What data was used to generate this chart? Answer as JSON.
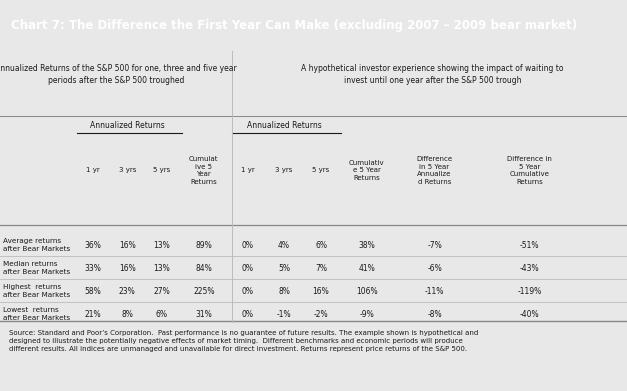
{
  "title": "Chart 7: The Difference the First Year Can Make (excluding 2007 – 2009 bear market)",
  "title_bg": "#1d5a7a",
  "title_color": "#ffffff",
  "header1": "Annualized Returns of the S&P 500 for one, three and five year\nperiods after the S&P 500 troughed",
  "header2": "A hypothetical investor experience showing the impact of waiting to\ninvest until one year after the S&P 500 trough",
  "annualized_returns_label": "Annualized Returns",
  "annualized_returns_label2": "Annualized Returns",
  "col_headers": [
    "1 yr",
    "3 yrs",
    "5 yrs",
    "Cumulat\nive 5\nYear\nReturns",
    "1 yr",
    "3 yrs",
    "5 yrs",
    "Cumulativ\ne 5 Year\nReturns",
    "Difference\nin 5 Year\nAnnualize\nd Returns",
    "Difference in\n5 Year\nCumulative\nReturns"
  ],
  "rows": [
    {
      "label": "Average returns\nafter Bear Markets",
      "data": [
        "36%",
        "16%",
        "13%",
        "89%",
        "0%",
        "4%",
        "6%",
        "38%",
        "-7%",
        "-51%"
      ]
    },
    {
      "label": "Median returns\nafter Bear Markets",
      "data": [
        "33%",
        "16%",
        "13%",
        "84%",
        "0%",
        "5%",
        "7%",
        "41%",
        "-6%",
        "-43%"
      ]
    },
    {
      "label": "Highest  returns\nafter Bear Markets",
      "data": [
        "58%",
        "23%",
        "27%",
        "225%",
        "0%",
        "8%",
        "16%",
        "106%",
        "-11%",
        "-119%"
      ]
    },
    {
      "label": "Lowest  returns\nafter Bear Markets",
      "data": [
        "21%",
        "8%",
        "6%",
        "31%",
        "0%",
        "-1%",
        "-2%",
        "-9%",
        "-8%",
        "-40%"
      ]
    }
  ],
  "footnote": "Source: Standard and Poor’s Corporation.  Past performance is no guarantee of future results. The example shown is hypothetical and\ndesigned to illustrate the potentially negative effects of market timing.  Different benchmarks and economic periods will produce\ndifferent results. All indices are unmanaged and unavailable for direct investment. Returns represent price returns of the S&P 500.",
  "bg_color": "#e8e8e8",
  "table_bg": "#f5f5f5",
  "text_color": "#1a1a1a",
  "divider_color": "#888888",
  "light_divider": "#bbbbbb"
}
